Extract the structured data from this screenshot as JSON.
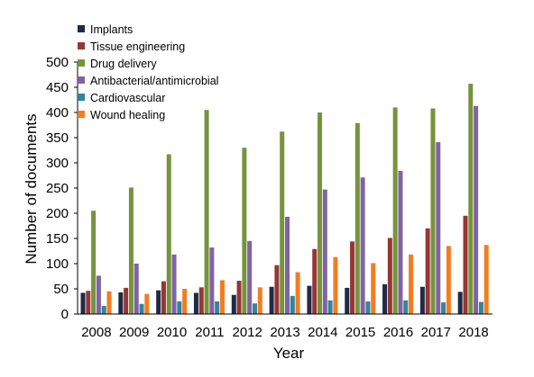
{
  "chart_data": {
    "type": "bar",
    "xlabel": "Year",
    "ylabel": "Number of documents",
    "ylim": [
      0,
      500
    ],
    "yticks": [
      0,
      50,
      100,
      150,
      200,
      250,
      300,
      350,
      400,
      450,
      500
    ],
    "grid": false,
    "legend_position": "top-left",
    "categories": [
      "2008",
      "2009",
      "2010",
      "2011",
      "2012",
      "2013",
      "2014",
      "2015",
      "2016",
      "2017",
      "2018"
    ],
    "series": [
      {
        "name": "Implants",
        "color": "#1f2a44",
        "values": [
          42,
          43,
          47,
          42,
          38,
          54,
          56,
          52,
          59,
          54,
          44
        ]
      },
      {
        "name": "Tissue engineering",
        "color": "#953735",
        "values": [
          46,
          52,
          65,
          53,
          66,
          97,
          129,
          144,
          151,
          170,
          195
        ]
      },
      {
        "name": "Drug delivery",
        "color": "#77933c",
        "values": [
          205,
          251,
          317,
          405,
          330,
          362,
          400,
          379,
          410,
          408,
          457
        ]
      },
      {
        "name": "Antibacterial/antimicrobial",
        "color": "#8064a2",
        "values": [
          76,
          100,
          118,
          132,
          145,
          193,
          247,
          271,
          284,
          341,
          413
        ]
      },
      {
        "name": "Cardiovascular",
        "color": "#31859c",
        "values": [
          16,
          20,
          25,
          25,
          21,
          36,
          27,
          25,
          27,
          23,
          24
        ]
      },
      {
        "name": "Wound healing",
        "color": "#f47c20",
        "values": [
          45,
          40,
          50,
          67,
          53,
          83,
          113,
          101,
          118,
          135,
          137
        ]
      }
    ]
  }
}
